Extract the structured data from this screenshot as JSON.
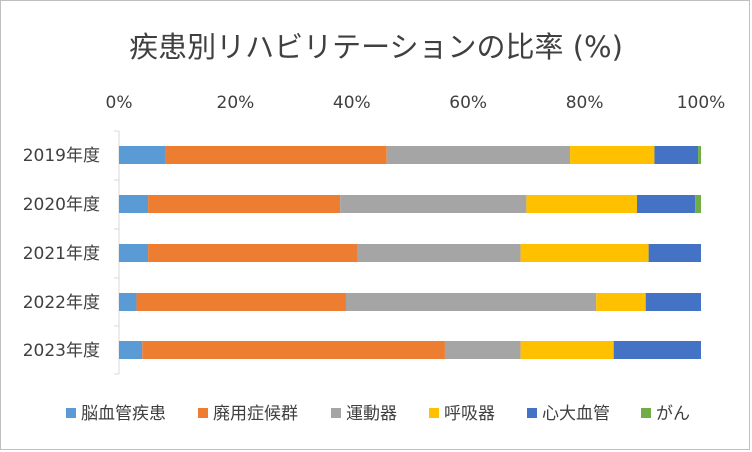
{
  "chart_data": {
    "type": "bar",
    "orientation": "horizontal",
    "stacked": "percent",
    "title": "疾患別リハビリテーションの比率 (%)",
    "categories": [
      "2019年度",
      "2020年度",
      "2021年度",
      "2022年度",
      "2023年度"
    ],
    "x_ticks": [
      "0%",
      "20%",
      "40%",
      "60%",
      "80%",
      "100%"
    ],
    "xlim": [
      0,
      100
    ],
    "grid": false,
    "legend_position": "bottom",
    "series": [
      {
        "name": "脳血管疾患",
        "color": "#5b9bd5",
        "values": [
          8,
          5,
          5,
          3,
          4
        ]
      },
      {
        "name": "廃用症候群",
        "color": "#ed7d31",
        "values": [
          38,
          33,
          36,
          36,
          52
        ]
      },
      {
        "name": "運動器",
        "color": "#a5a5a5",
        "values": [
          31.5,
          32,
          28,
          43,
          13
        ]
      },
      {
        "name": "呼吸器",
        "color": "#ffc000",
        "values": [
          14.5,
          19,
          22,
          8.5,
          16
        ]
      },
      {
        "name": "心大血管",
        "color": "#4472c4",
        "values": [
          7.5,
          10,
          9,
          9.5,
          15
        ]
      },
      {
        "name": "がん",
        "color": "#70ad47",
        "values": [
          0.5,
          1,
          0,
          0,
          0
        ]
      }
    ]
  }
}
